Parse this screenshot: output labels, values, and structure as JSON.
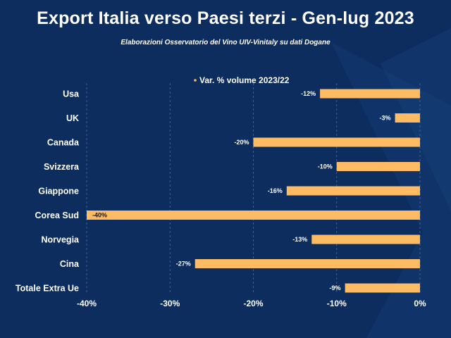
{
  "title": "Export Italia verso Paesi terzi - Gen-lug 2023",
  "subtitle": "Elaborazioni Osservatorio del Vino UIV-Vinitaly su dati Dogane",
  "colors": {
    "background": "#0d2d5e",
    "bar": "#fdbb63",
    "text": "#ffffff",
    "grid": "#3e5f8c"
  },
  "chart_data": {
    "type": "bar",
    "orientation": "horizontal",
    "title": "Export Italia verso Paesi terzi - Gen-lug 2023",
    "subtitle": "Elaborazioni Osservatorio del Vino UIV-Vinitaly su dati Dogane",
    "legend": {
      "position": "top",
      "label": "Var. % volume 2023/22"
    },
    "categories": [
      "Usa",
      "UK",
      "Canada",
      "Svizzera",
      "Giappone",
      "Corea Sud",
      "Norvegia",
      "Cina",
      "Totale Extra Ue"
    ],
    "series": [
      {
        "name": "Var. % volume 2023/22",
        "values": [
          -12,
          -3,
          -20,
          -10,
          -16,
          -40,
          -13,
          -27,
          -9
        ],
        "labels": [
          "-12%",
          "-3%",
          "-20%",
          "-10%",
          "-16%",
          "-40%",
          "-13%",
          "-27%",
          "-9%"
        ]
      }
    ],
    "xlim": [
      -40,
      0
    ],
    "xticks": [
      -40,
      -30,
      -20,
      -10,
      0
    ],
    "xtick_labels": [
      "-40%",
      "-30%",
      "-20%",
      "-10%",
      "0%"
    ],
    "xlabel": "",
    "ylabel": "",
    "grid": true
  }
}
